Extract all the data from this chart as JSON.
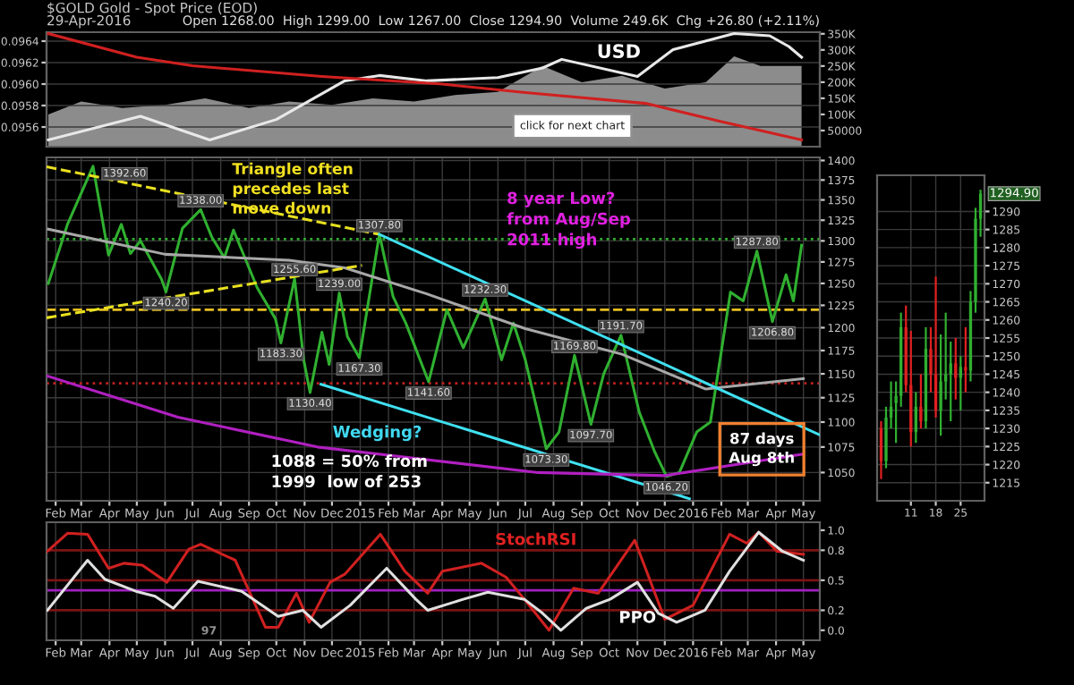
{
  "chart_data": [
    {
      "type": "line",
      "title": "$GOLD Gold - Spot Price (EOD)",
      "subtitle": "29-Apr-2016",
      "xlim": [
        "2014-01-22",
        "2016-05-19"
      ],
      "ylim": [
        0.095417,
        0.096483
      ],
      "yticks": [
        0.0956,
        0.0958,
        {
          "value": 0.096,
          "label": "0.0960"
        },
        0.0962,
        0.0964
      ],
      "y2lim": [
        0,
        355000
      ],
      "y2ticks": [
        50000,
        {
          "value": 100000,
          "label": "100K"
        },
        {
          "value": 150000,
          "label": "150K"
        },
        {
          "value": 200000,
          "label": "200K"
        },
        {
          "value": 250000,
          "label": "250K"
        },
        {
          "value": 300000,
          "label": "300K"
        },
        {
          "value": 350000,
          "label": "350K"
        }
      ],
      "tick_labels": "y",
      "grid": true,
      "legend": false,
      "marker": "none",
      "series": [
        {
          "type": "area",
          "axis": "y2",
          "color": "#8c8c8c",
          "x": [
            "2014-01-24",
            "2014-03-01",
            "2014-04-15",
            "2014-06-01",
            "2014-07-15",
            "2014-09-01",
            "2014-10-15",
            "2014-12-01",
            "2015-01-15",
            "2015-03-01",
            "2015-04-15",
            "2015-06-01",
            "2015-07-20",
            "2015-09-01",
            "2015-10-15",
            "2015-12-01",
            "2016-01-15",
            "2016-02-15",
            "2016-03-15",
            "2016-04-29"
          ],
          "values": [
            100000,
            140000,
            120000,
            130000,
            150000,
            120000,
            140000,
            130000,
            150000,
            140000,
            160000,
            170000,
            250000,
            200000,
            220000,
            180000,
            200000,
            280000,
            250000,
            250000
          ]
        },
        {
          "type": "line",
          "color": "#e8e8e8",
          "x": [
            "2014-01-24",
            "2014-05-05",
            "2014-07-20",
            "2014-10-01",
            "2014-12-15",
            "2015-01-22",
            "2015-03-15",
            "2015-06-01",
            "2015-07-20",
            "2015-08-10",
            "2015-11-01",
            "2015-12-10",
            "2016-02-15",
            "2016-03-25",
            "2016-04-15",
            "2016-04-29"
          ],
          "values": [
            0.09548,
            0.0957,
            0.09548,
            0.09567,
            0.09603,
            0.09608,
            0.09603,
            0.09606,
            0.09615,
            0.09623,
            0.09607,
            0.09632,
            0.09647,
            0.09645,
            0.09635,
            0.09625
          ]
        },
        {
          "type": "line",
          "color": "#d02020",
          "x": [
            "2014-01-24",
            "2014-05-01",
            "2014-07-01",
            "2014-11-20",
            "2015-04-01",
            "2015-07-01",
            "2015-11-10",
            "2016-02-01",
            "2016-04-29"
          ],
          "values": [
            0.09647,
            0.09625,
            0.09617,
            0.09607,
            0.096,
            0.09592,
            0.09582,
            0.09565,
            0.09548
          ]
        }
      ],
      "annotations": [
        "Open 1268.00  High 1299.00  Low 1267.00  Close 1294.90  Volume 249.6K  Chg +26.80 (+2.11%)",
        "USD",
        "click for next chart"
      ]
    },
    {
      "type": "line",
      "log": true,
      "xlim": [
        "2014-01-22",
        "2016-05-19"
      ],
      "ylim": [
        1023,
        1404
      ],
      "yticks": [
        1050,
        1075,
        1100,
        1125,
        1150,
        1175,
        1200,
        1225,
        1250,
        1275,
        1300,
        1325,
        1350,
        1375,
        1400
      ],
      "xticks": [
        {
          "value": "2014-02-01",
          "label": "Feb"
        },
        {
          "value": "2014-03-01",
          "label": "Mar"
        },
        {
          "value": "2014-04-01",
          "label": "Apr"
        },
        {
          "value": "2014-05-01",
          "label": "May"
        },
        {
          "value": "2014-06-01",
          "label": "Jun"
        },
        {
          "value": "2014-07-01",
          "label": "Jul"
        },
        {
          "value": "2014-08-01",
          "label": "Aug"
        },
        {
          "value": "2014-09-01",
          "label": "Sep"
        },
        {
          "value": "2014-10-01",
          "label": "Oct"
        },
        {
          "value": "2014-11-01",
          "label": "Nov"
        },
        {
          "value": "2014-12-01",
          "label": "Dec"
        },
        {
          "value": "2015-01-01",
          "label": "2015"
        },
        {
          "value": "2015-02-01",
          "label": "Feb"
        },
        {
          "value": "2015-03-01",
          "label": "Mar"
        },
        {
          "value": "2015-04-01",
          "label": "Apr"
        },
        {
          "value": "2015-05-01",
          "label": "May"
        },
        {
          "value": "2015-06-01",
          "label": "Jun"
        },
        {
          "value": "2015-07-01",
          "label": "Jul"
        },
        {
          "value": "2015-08-01",
          "label": "Aug"
        },
        {
          "value": "2015-09-01",
          "label": "Sep"
        },
        {
          "value": "2015-10-01",
          "label": "Oct"
        },
        {
          "value": "2015-11-01",
          "label": "Nov"
        },
        {
          "value": "2015-12-01",
          "label": "Dec"
        },
        {
          "value": "2016-01-01",
          "label": "2016"
        },
        {
          "value": "2016-02-01",
          "label": "Feb"
        },
        {
          "value": "2016-03-01",
          "label": "Mar"
        },
        {
          "value": "2016-04-01",
          "label": "Apr"
        },
        {
          "value": "2016-05-01",
          "label": "May"
        }
      ],
      "grid": true,
      "legend": false,
      "marker": "none",
      "series": [
        {
          "color": "#30b030",
          "x": [
            "2014-01-24",
            "2014-02-14",
            "2014-03-14",
            "2014-03-31",
            "2014-04-14",
            "2014-04-24",
            "2014-05-05",
            "2014-05-28",
            "2014-06-02",
            "2014-06-20",
            "2014-07-10",
            "2014-07-22",
            "2014-08-05",
            "2014-08-15",
            "2014-09-10",
            "2014-09-30",
            "2014-10-06",
            "2014-10-21",
            "2014-10-31",
            "2014-11-07",
            "2014-11-20",
            "2014-11-28",
            "2014-12-09",
            "2014-12-18",
            "2014-12-31",
            "2015-01-22",
            "2015-02-06",
            "2015-02-20",
            "2015-03-17",
            "2015-04-06",
            "2015-04-24",
            "2015-05-18",
            "2015-06-05",
            "2015-06-18",
            "2015-07-01",
            "2015-07-24",
            "2015-08-07",
            "2015-08-24",
            "2015-09-11",
            "2015-09-25",
            "2015-10-14",
            "2015-11-03",
            "2015-11-20",
            "2015-12-03",
            "2015-12-17",
            "2016-01-05",
            "2016-01-20",
            "2016-02-11",
            "2016-02-25",
            "2016-03-11",
            "2016-03-28",
            "2016-04-12",
            "2016-04-20",
            "2016-04-29"
          ],
          "values": [
            1250,
            1320,
            1392.6,
            1283,
            1320,
            1285,
            1300,
            1255,
            1240.2,
            1315,
            1338,
            1305,
            1280,
            1313,
            1245,
            1210,
            1183.3,
            1255.6,
            1165,
            1130.4,
            1195,
            1160,
            1239,
            1190,
            1167.3,
            1307.8,
            1235,
            1205,
            1141.6,
            1220,
            1178,
            1232.3,
            1165,
            1205,
            1165,
            1073.3,
            1090,
            1169.8,
            1097.7,
            1150,
            1191.7,
            1110,
            1070,
            1046.2,
            1050,
            1090,
            1100,
            1240,
            1230,
            1287.8,
            1206.8,
            1260,
            1230,
            1294.9
          ]
        },
        {
          "color": "#a8a8a8",
          "x": [
            "2014-01-24",
            "2014-06-01",
            "2014-10-15",
            "2014-12-15",
            "2015-03-15",
            "2015-07-01",
            "2015-10-15",
            "2016-01-15",
            "2016-05-01"
          ],
          "values": [
            1314,
            1284,
            1277,
            1268,
            1238,
            1199,
            1171,
            1134,
            1145
          ]
        },
        {
          "color": "#e8e020",
          "line_style": "dashed",
          "x": [
            "2014-01-22",
            "2015-01-22"
          ],
          "values": [
            1392,
            1307.8
          ]
        },
        {
          "color": "#e8e020",
          "line_style": "dashed",
          "x": [
            "2014-01-22",
            "2015-01-03"
          ],
          "values": [
            1211,
            1271
          ]
        },
        {
          "color": "#40e0f0",
          "x": [
            "2015-01-22",
            "2016-05-19"
          ],
          "values": [
            1307.8,
            1087
          ]
        },
        {
          "color": "#40e0f0",
          "x": [
            "2014-11-19",
            "2015-12-28"
          ],
          "values": [
            1139,
            1025
          ]
        },
        {
          "color": "#b020c0",
          "x": [
            "2014-01-22",
            "2014-06-15",
            "2014-11-15",
            "2015-07-15",
            "2015-12-01",
            "2016-05-01"
          ],
          "values": [
            1148,
            1105,
            1075,
            1050,
            1047,
            1068
          ]
        }
      ],
      "ref_lines": [
        {
          "axis": "y",
          "value": 1302,
          "color": "#30b030",
          "line_style": "dotted"
        },
        {
          "axis": "y",
          "value": 1220,
          "color": "#e8c020",
          "line_style": "dashed"
        },
        {
          "axis": "y",
          "value": 1140,
          "color": "#c02020",
          "line_style": "dotted"
        }
      ],
      "annotations": [
        "Triangle often\nprecedes last\nmove down",
        "8 year Low?\nfrom Aug/Sep\n2011 high",
        "Wedging?",
        "1088 = 50% from\n1999  low of 253",
        "87 days\nAug 8th",
        {
          "text": "1392.60",
          "x": "2014-03-14",
          "y": 1392.6
        },
        {
          "text": "1338.00",
          "x": "2014-07-10",
          "y": 1338
        },
        {
          "text": "1240.20",
          "x": "2014-06-02",
          "y": 1240.2
        },
        {
          "text": "1255.60",
          "x": "2014-10-21",
          "y": 1255.6
        },
        {
          "text": "1183.30",
          "x": "2014-10-06",
          "y": 1183.3
        },
        {
          "text": "1130.40",
          "x": "2014-11-07",
          "y": 1130.4
        },
        {
          "text": "1239.00",
          "x": "2014-12-09",
          "y": 1239
        },
        {
          "text": "1167.30",
          "x": "2014-12-31",
          "y": 1167.3
        },
        {
          "text": "1307.80",
          "x": "2015-01-22",
          "y": 1307.8
        },
        {
          "text": "1141.60",
          "x": "2015-03-17",
          "y": 1141.6
        },
        {
          "text": "1232.30",
          "x": "2015-05-18",
          "y": 1232.3
        },
        {
          "text": "1073.30",
          "x": "2015-07-24",
          "y": 1073.3
        },
        {
          "text": "1169.80",
          "x": "2015-08-24",
          "y": 1169.8
        },
        {
          "text": "1097.70",
          "x": "2015-09-11",
          "y": 1097.7
        },
        {
          "text": "1191.70",
          "x": "2015-10-14",
          "y": 1191.7
        },
        {
          "text": "1046.20",
          "x": "2015-12-03",
          "y": 1046.2
        },
        {
          "text": "1287.80",
          "x": "2016-03-11",
          "y": 1287.8
        },
        {
          "text": "1206.80",
          "x": "2016-03-28",
          "y": 1206.8
        }
      ]
    },
    {
      "type": "line",
      "xlim": [
        "2014-01-22",
        "2016-05-19"
      ],
      "ylim": [
        -0.1,
        1.08
      ],
      "yticks": [
        {
          "value": 0,
          "label": "0.0"
        },
        0.2,
        0.5,
        0.8,
        {
          "value": 1,
          "label": "1.0"
        }
      ],
      "grid": "x",
      "legend": false,
      "marker": "none",
      "xticks": [
        {
          "value": "2014-02-01",
          "label": "Feb"
        },
        {
          "value": "2014-03-01",
          "label": "Mar"
        },
        {
          "value": "2014-04-01",
          "label": "Apr"
        },
        {
          "value": "2014-05-01",
          "label": "May"
        },
        {
          "value": "2014-06-01",
          "label": "Jun"
        },
        {
          "value": "2014-07-01",
          "label": "Jul"
        },
        {
          "value": "2014-08-01",
          "label": "Aug"
        },
        {
          "value": "2014-09-01",
          "label": "Sep"
        },
        {
          "value": "2014-10-01",
          "label": "Oct"
        },
        {
          "value": "2014-11-01",
          "label": "Nov"
        },
        {
          "value": "2014-12-01",
          "label": "Dec"
        },
        {
          "value": "2015-01-01",
          "label": "2015"
        },
        {
          "value": "2015-02-01",
          "label": "Feb"
        },
        {
          "value": "2015-03-01",
          "label": "Mar"
        },
        {
          "value": "2015-04-01",
          "label": "Apr"
        },
        {
          "value": "2015-05-01",
          "label": "May"
        },
        {
          "value": "2015-06-01",
          "label": "Jun"
        },
        {
          "value": "2015-07-01",
          "label": "Jul"
        },
        {
          "value": "2015-08-01",
          "label": "Aug"
        },
        {
          "value": "2015-09-01",
          "label": "Sep"
        },
        {
          "value": "2015-10-01",
          "label": "Oct"
        },
        {
          "value": "2015-11-01",
          "label": "Nov"
        },
        {
          "value": "2015-12-01",
          "label": "Dec"
        },
        {
          "value": "2016-01-01",
          "label": "2016"
        },
        {
          "value": "2016-02-01",
          "label": "Feb"
        },
        {
          "value": "2016-03-01",
          "label": "Mar"
        },
        {
          "value": "2016-04-01",
          "label": "Apr"
        },
        {
          "value": "2016-05-01",
          "label": "May"
        }
      ],
      "series": [
        {
          "color": "#d02020",
          "x": [
            "2014-01-23",
            "2014-02-14",
            "2014-03-08",
            "2014-03-31",
            "2014-04-17",
            "2014-05-07",
            "2014-06-03",
            "2014-06-27",
            "2014-07-10",
            "2014-08-17",
            "2014-09-19",
            "2014-10-03",
            "2014-10-23",
            "2014-11-06",
            "2014-11-29",
            "2014-12-15",
            "2015-01-23",
            "2015-02-19",
            "2015-03-16",
            "2015-04-01",
            "2015-05-14",
            "2015-06-10",
            "2015-06-30",
            "2015-07-27",
            "2015-08-23",
            "2015-09-19",
            "2015-10-29",
            "2015-11-11",
            "2015-12-01",
            "2016-01-01",
            "2016-02-10",
            "2016-02-29",
            "2016-03-13",
            "2016-04-02",
            "2016-05-01"
          ],
          "values": [
            0.79,
            0.97,
            0.96,
            0.62,
            0.67,
            0.65,
            0.48,
            0.81,
            0.86,
            0.7,
            0.03,
            0.03,
            0.37,
            0.08,
            0.48,
            0.56,
            0.96,
            0.59,
            0.37,
            0.59,
            0.67,
            0.53,
            0.31,
            0.0,
            0.42,
            0.37,
            0.9,
            0.59,
            0.11,
            0.25,
            0.96,
            0.87,
            0.98,
            0.79,
            0.76
          ]
        },
        {
          "color": "#e0e0e0",
          "x": [
            "2014-01-23",
            "2014-03-08",
            "2014-03-27",
            "2014-04-30",
            "2014-05-21",
            "2014-06-10",
            "2014-07-07",
            "2014-08-24",
            "2014-10-03",
            "2014-10-30",
            "2014-11-19",
            "2014-12-21",
            "2015-01-30",
            "2015-03-03",
            "2015-03-16",
            "2015-04-24",
            "2015-05-21",
            "2015-06-30",
            "2015-07-20",
            "2015-08-09",
            "2015-09-06",
            "2015-10-02",
            "2015-11-01",
            "2015-11-24",
            "2015-12-14",
            "2016-01-14",
            "2016-02-10",
            "2016-03-13",
            "2016-04-08",
            "2016-05-01"
          ],
          "values": [
            0.2,
            0.7,
            0.51,
            0.39,
            0.34,
            0.22,
            0.49,
            0.39,
            0.14,
            0.2,
            0.03,
            0.25,
            0.62,
            0.31,
            0.2,
            0.31,
            0.38,
            0.31,
            0.17,
            0.0,
            0.22,
            0.31,
            0.48,
            0.17,
            0.08,
            0.2,
            0.59,
            0.98,
            0.79,
            0.7
          ]
        }
      ],
      "ref_lines": [
        {
          "axis": "y",
          "value": 0.2,
          "color": "#7a1414"
        },
        {
          "axis": "y",
          "value": 0.5,
          "color": "#7a1414"
        },
        {
          "axis": "y",
          "value": 0.8,
          "color": "#7a1414"
        },
        {
          "axis": "y",
          "value": 0.4,
          "color": "#a020c0"
        }
      ],
      "annotations": [
        "StochRSI",
        "PPO",
        "97"
      ]
    },
    {
      "type": "candlestick",
      "ylim": [
        1210,
        1300
      ],
      "yticks": [
        1215,
        1220,
        1225,
        1230,
        1235,
        1240,
        1245,
        1250,
        1255,
        1260,
        1265,
        1270,
        1275,
        1280,
        1285,
        1290
      ],
      "grid": true,
      "categories": [
        null,
        null,
        null,
        null,
        null,
        null,
        "11",
        null,
        null,
        null,
        null,
        "18",
        null,
        null,
        null,
        null,
        "25",
        null,
        null,
        null,
        null
      ],
      "ohlc": [
        [
          1230,
          1232,
          1216,
          1221
        ],
        [
          1221,
          1236,
          1219,
          1233
        ],
        [
          1233,
          1243,
          1230,
          1236
        ],
        [
          1237,
          1243,
          1226,
          1239
        ],
        [
          1239,
          1262,
          1236,
          1258
        ],
        [
          1258,
          1264,
          1240,
          1242
        ],
        [
          1242,
          1257,
          1225,
          1229
        ],
        [
          1229,
          1240,
          1226,
          1236
        ],
        [
          1236,
          1245,
          1230,
          1232
        ],
        [
          1232,
          1258,
          1230,
          1252
        ],
        [
          1252,
          1258,
          1240,
          1245
        ],
        [
          1245,
          1272,
          1233,
          1235
        ],
        [
          1235,
          1256,
          1228,
          1243
        ],
        [
          1243,
          1262,
          1238,
          1245
        ],
        [
          1245,
          1254,
          1232,
          1248
        ],
        [
          1248,
          1255,
          1238,
          1244
        ],
        [
          1244,
          1250,
          1235,
          1247
        ],
        [
          1247,
          1258,
          1240,
          1246
        ],
        [
          1246,
          1268,
          1243,
          1265
        ],
        [
          1265,
          1291,
          1262,
          1288
        ],
        [
          1288,
          1296,
          1283,
          1294.9
        ]
      ],
      "annotations": [
        "1294.90"
      ]
    }
  ]
}
